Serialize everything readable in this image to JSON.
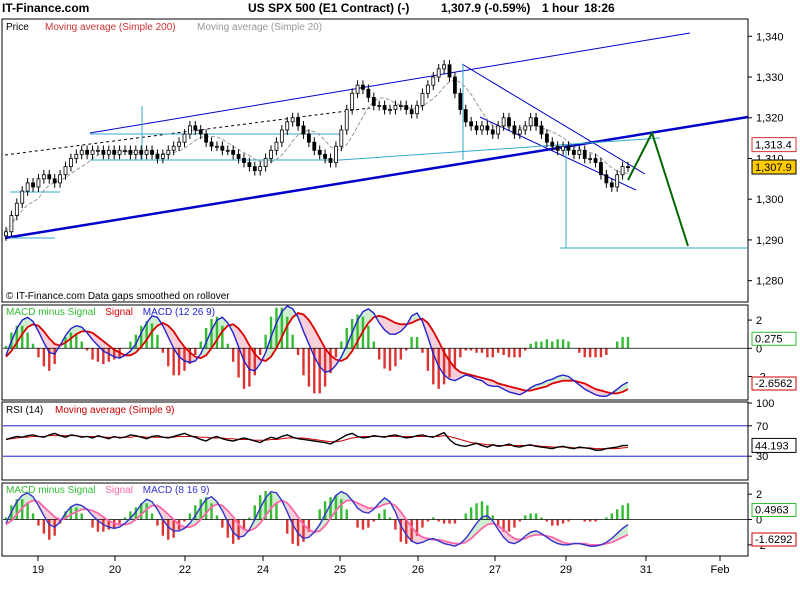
{
  "header": {
    "site": "IT-Finance.com",
    "instrument": "US SPX 500 (E1 Contract) (-)",
    "quote": "1,307.9 (-0.59%)",
    "timeframe": "1 hour",
    "time": "18:26"
  },
  "colors": {
    "price": "#000000",
    "channel": "#0000cc",
    "ma200": "#cc3333",
    "ma20": "#999999",
    "projection": "#006600",
    "support": "#33aacc",
    "macd_line": "#2222cc",
    "signal_line": "#dd0000",
    "hist_pos": "#33bb33",
    "hist_neg": "#dd3333",
    "rsi": "#000000",
    "rsi_ma": "#cc0000",
    "macd2_line": "#3333cc",
    "macd2_signal": "#ff66aa"
  },
  "chart_data": [
    {
      "type": "candlestick",
      "panel_label": "Price",
      "legend": [
        {
          "name": "Moving average (Simple 200)",
          "color": "#cc3333"
        },
        {
          "name": "Moving average (Simple 20)",
          "color": "#999999"
        }
      ],
      "y_ticks": [
        "1,340",
        "1,330",
        "1,320",
        "1,310",
        "1,300",
        "1,290",
        "1,280"
      ],
      "ylim": [
        1275,
        1344
      ],
      "x_ticks": [
        "19",
        "20",
        "22",
        "24",
        "25",
        "26",
        "27",
        "29",
        "31",
        "Feb"
      ],
      "last_value_label": "1,307.9",
      "last_ma_label": "1,313.4",
      "footnote": "© IT-Finance.com  Data gaps smoothed on rollover",
      "close_series": [
        1292,
        1296,
        1299,
        1302,
        1304,
        1303,
        1305,
        1306,
        1305,
        1304,
        1306,
        1308,
        1310,
        1311,
        1312,
        1311,
        1312,
        1312,
        1311,
        1312,
        1311,
        1312,
        1312,
        1311,
        1312,
        1311,
        1312,
        1311,
        1310,
        1311,
        1312,
        1313,
        1314,
        1316,
        1318,
        1317,
        1316,
        1314,
        1313,
        1313,
        1312,
        1312,
        1311,
        1310,
        1309,
        1308,
        1307,
        1308,
        1310,
        1312,
        1314,
        1317,
        1319,
        1320,
        1318,
        1316,
        1314,
        1312,
        1311,
        1310,
        1309,
        1313,
        1317,
        1322,
        1326,
        1328,
        1327,
        1325,
        1323,
        1323,
        1322,
        1322,
        1323,
        1323,
        1322,
        1321,
        1323,
        1326,
        1328,
        1330,
        1332,
        1333,
        1330,
        1326,
        1322,
        1319,
        1318,
        1317,
        1318,
        1317,
        1316,
        1318,
        1320,
        1318,
        1316,
        1317,
        1318,
        1320,
        1318,
        1316,
        1314,
        1313,
        1312,
        1313,
        1312,
        1311,
        1312,
        1310,
        1310,
        1309,
        1306,
        1304,
        1303,
        1306,
        1308,
        1307.9
      ],
      "ma200_series": [
        1292,
        1294,
        1296,
        1298,
        1300,
        1301,
        1302,
        1303,
        1304,
        1305,
        1306,
        1307,
        1308,
        1309,
        1310,
        1310,
        1311,
        1311,
        1311,
        1312,
        1312,
        1312,
        1312,
        1312,
        1312,
        1312,
        1312,
        1312,
        1312,
        1312,
        1312,
        1312,
        1313,
        1313,
        1314,
        1314,
        1314,
        1314,
        1314,
        1314,
        1314,
        1313,
        1313,
        1313,
        1312,
        1312,
        1311,
        1311,
        1311,
        1311,
        1312,
        1312,
        1313,
        1314,
        1314,
        1314,
        1314,
        1314,
        1313,
        1313,
        1312,
        1312,
        1313,
        1314,
        1315,
        1316,
        1317,
        1318,
        1318,
        1319,
        1319,
        1320,
        1320,
        1320,
        1320,
        1320,
        1321,
        1321,
        1322,
        1322,
        1323,
        1324,
        1324,
        1324,
        1324,
        1323,
        1323,
        1322,
        1321,
        1320,
        1320,
        1319,
        1319,
        1319,
        1318,
        1318,
        1318,
        1318,
        1318,
        1317,
        1317,
        1316,
        1316,
        1315,
        1315,
        1314,
        1314,
        1314,
        1313,
        1313,
        1312,
        1312,
        1312,
        1312,
        1313,
        1313.4
      ]
    },
    {
      "type": "macd",
      "legend": [
        {
          "name": "MACD minus Signal",
          "color": "#33bb33"
        },
        {
          "name": "Signal",
          "color": "#dd0000"
        },
        {
          "name": "MACD (12 26 9)",
          "color": "#2222cc"
        }
      ],
      "y_ticks": [
        "2",
        "0",
        "-2"
      ],
      "ylim": [
        -3.6,
        3.0
      ],
      "macd_label": "0.275",
      "signal_label": "-2.6562",
      "macd": [
        -0.5,
        0.5,
        1.4,
        2.0,
        2.2,
        1.9,
        1.2,
        0.4,
        -0.3,
        -0.4,
        0.2,
        0.9,
        1.4,
        1.6,
        1.5,
        1.1,
        0.6,
        0.2,
        -0.2,
        -0.4,
        -0.6,
        -0.7,
        -0.5,
        -0.2,
        0.3,
        1.1,
        1.8,
        2.3,
        2.2,
        1.6,
        0.8,
        0.0,
        -0.6,
        -0.9,
        -1.0,
        -0.9,
        -0.4,
        0.4,
        1.3,
        2.0,
        2.2,
        1.8,
        1.1,
        0.1,
        -0.9,
        -1.5,
        -1.6,
        -1.1,
        -0.3,
        0.8,
        1.8,
        2.6,
        3.0,
        2.8,
        2.2,
        1.2,
        0.3,
        -0.6,
        -1.3,
        -1.7,
        -1.6,
        -1.2,
        -0.6,
        0.2,
        1.1,
        2.0,
        2.6,
        2.8,
        2.5,
        1.8,
        1.3,
        1.0,
        1.0,
        1.2,
        1.6,
        2.3,
        2.5,
        1.9,
        0.8,
        -0.4,
        -1.3,
        -1.9,
        -2.2,
        -2.3,
        -2.1,
        -1.9,
        -2.0,
        -2.2,
        -2.3,
        -2.6,
        -2.7,
        -2.7,
        -2.9,
        -3.1,
        -3.2,
        -3.3,
        -3.1,
        -2.8,
        -2.6,
        -2.5,
        -2.3,
        -2.2,
        -2.0,
        -1.9,
        -2.0,
        -2.3,
        -2.6,
        -2.9,
        -3.1,
        -3.3,
        -3.4,
        -3.4,
        -3.2,
        -2.9,
        -2.6,
        -2.4
      ],
      "signal": [
        -0.6,
        -0.2,
        0.4,
        1.0,
        1.5,
        1.7,
        1.6,
        1.2,
        0.7,
        0.3,
        0.2,
        0.4,
        0.7,
        1.0,
        1.2,
        1.2,
        1.1,
        0.8,
        0.5,
        0.2,
        -0.1,
        -0.3,
        -0.5,
        -0.5,
        -0.3,
        0.1,
        0.6,
        1.2,
        1.6,
        1.8,
        1.6,
        1.2,
        0.6,
        0.1,
        -0.3,
        -0.6,
        -0.7,
        -0.5,
        0.0,
        0.6,
        1.2,
        1.6,
        1.7,
        1.4,
        0.9,
        0.2,
        -0.4,
        -0.8,
        -0.9,
        -0.6,
        0.0,
        0.8,
        1.6,
        2.2,
        2.5,
        2.4,
        2.0,
        1.4,
        0.7,
        0.0,
        -0.5,
        -0.8,
        -0.9,
        -0.7,
        -0.2,
        0.5,
        1.2,
        1.8,
        2.2,
        2.3,
        2.2,
        2.0,
        1.8,
        1.7,
        1.7,
        1.8,
        2.0,
        2.1,
        1.8,
        1.2,
        0.5,
        -0.3,
        -0.9,
        -1.4,
        -1.7,
        -1.8,
        -1.9,
        -2.0,
        -2.1,
        -2.2,
        -2.3,
        -2.5,
        -2.6,
        -2.7,
        -2.8,
        -2.9,
        -3.0,
        -3.0,
        -2.9,
        -2.8,
        -2.7,
        -2.5,
        -2.4,
        -2.3,
        -2.3,
        -2.3,
        -2.4,
        -2.5,
        -2.7,
        -2.9,
        -3.0,
        -3.1,
        -3.2,
        -3.2,
        -3.1,
        -2.9
      ]
    },
    {
      "type": "line",
      "legend": [
        {
          "name": "RSI (14)",
          "color": "#000000"
        },
        {
          "name": "Moving average (Simple 9)",
          "color": "#cc0000"
        }
      ],
      "y_ticks": [
        "100",
        "70",
        "30"
      ],
      "ylim": [
        0,
        100
      ],
      "rsi_label": "44.193",
      "rsi": [
        52,
        54,
        56,
        55,
        57,
        58,
        56,
        55,
        58,
        60,
        57,
        55,
        58,
        57,
        55,
        56,
        54,
        57,
        55,
        53,
        56,
        54,
        55,
        58,
        57,
        55,
        53,
        56,
        57,
        55,
        54,
        56,
        58,
        60,
        57,
        55,
        52,
        50,
        54,
        56,
        53,
        51,
        50,
        52,
        54,
        52,
        50,
        48,
        52,
        55,
        53,
        56,
        58,
        55,
        53,
        52,
        51,
        50,
        49,
        48,
        46,
        50,
        54,
        58,
        60,
        56,
        54,
        55,
        57,
        56,
        55,
        57,
        58,
        56,
        54,
        55,
        57,
        58,
        56,
        55,
        58,
        61,
        52,
        46,
        44,
        43,
        45,
        47,
        44,
        42,
        45,
        43,
        44,
        46,
        43,
        42,
        44,
        45,
        43,
        42,
        41,
        40,
        42,
        43,
        41,
        40,
        42,
        41,
        40,
        38,
        38,
        40,
        41,
        42,
        44,
        44.2
      ],
      "rsi_ma": [
        52,
        53,
        54,
        55,
        55,
        56,
        56,
        56,
        57,
        57,
        57,
        57,
        57,
        57,
        56,
        56,
        56,
        56,
        55,
        55,
        55,
        55,
        55,
        55,
        56,
        56,
        55,
        55,
        55,
        55,
        55,
        55,
        56,
        56,
        56,
        56,
        55,
        55,
        54,
        54,
        54,
        53,
        53,
        52,
        52,
        52,
        51,
        51,
        51,
        52,
        52,
        53,
        54,
        54,
        54,
        54,
        53,
        52,
        51,
        50,
        49,
        49,
        50,
        52,
        54,
        55,
        56,
        56,
        56,
        56,
        56,
        56,
        56,
        56,
        56,
        56,
        56,
        56,
        56,
        56,
        56,
        57,
        56,
        54,
        52,
        50,
        48,
        47,
        46,
        45,
        45,
        44,
        44,
        44,
        44,
        44,
        44,
        44,
        44,
        43,
        43,
        42,
        42,
        42,
        42,
        41,
        41,
        41,
        41,
        40,
        40,
        40,
        40,
        40,
        41,
        41.5
      ]
    },
    {
      "type": "macd",
      "legend": [
        {
          "name": "MACD minus Signal",
          "color": "#33bb33"
        },
        {
          "name": "Signal",
          "color": "#ff66aa"
        },
        {
          "name": "MACD (8 16 9)",
          "color": "#3333cc"
        }
      ],
      "y_ticks": [
        "2",
        "0",
        "-2"
      ],
      "ylim": [
        -2.8,
        2.8
      ],
      "macd_label": "0.4963",
      "signal_label": "-1.6292",
      "macd": [
        -0.3,
        0.6,
        1.4,
        1.9,
        2.1,
        1.8,
        1.1,
        0.3,
        -0.4,
        -0.6,
        -0.2,
        0.5,
        1.0,
        1.2,
        1.1,
        0.8,
        0.3,
        -0.1,
        -0.4,
        -0.6,
        -0.7,
        -0.6,
        -0.3,
        0.1,
        0.6,
        1.2,
        1.6,
        1.4,
        0.8,
        0.0,
        -0.6,
        -0.9,
        -0.9,
        -0.7,
        -0.3,
        0.3,
        1.0,
        1.6,
        1.8,
        1.4,
        0.7,
        -0.2,
        -1.0,
        -1.4,
        -1.3,
        -0.8,
        0.0,
        0.9,
        1.7,
        2.2,
        2.1,
        1.5,
        0.6,
        -0.4,
        -1.1,
        -1.5,
        -1.4,
        -1.0,
        -0.4,
        0.4,
        1.2,
        1.9,
        2.2,
        2.0,
        1.5,
        0.9,
        0.6,
        0.5,
        0.8,
        1.3,
        1.7,
        1.4,
        0.6,
        -0.5,
        -1.2,
        -1.7,
        -1.9,
        -1.8,
        -1.6,
        -1.5,
        -1.7,
        -1.9,
        -2.0,
        -2.1,
        -1.9,
        -1.5,
        -0.9,
        -0.3,
        0.2,
        0.3,
        -0.1,
        -0.8,
        -1.4,
        -1.8,
        -1.9,
        -1.7,
        -1.3,
        -1.0,
        -0.9,
        -1.1,
        -1.4,
        -1.7,
        -1.9,
        -2.0,
        -2.0,
        -1.9,
        -1.9,
        -2.0,
        -2.1,
        -2.1,
        -2.0,
        -1.8,
        -1.5,
        -1.1,
        -0.7,
        -0.4
      ],
      "signal": [
        -0.4,
        -0.1,
        0.4,
        0.9,
        1.3,
        1.5,
        1.4,
        1.0,
        0.6,
        0.2,
        0.0,
        0.1,
        0.4,
        0.6,
        0.8,
        0.8,
        0.7,
        0.5,
        0.2,
        -0.1,
        -0.3,
        -0.4,
        -0.4,
        -0.3,
        0.0,
        0.4,
        0.8,
        1.1,
        1.1,
        0.8,
        0.4,
        0.0,
        -0.4,
        -0.6,
        -0.6,
        -0.4,
        0.0,
        0.5,
        1.0,
        1.2,
        1.1,
        0.7,
        0.2,
        -0.4,
        -0.8,
        -0.9,
        -0.7,
        -0.3,
        0.3,
        0.9,
        1.3,
        1.5,
        1.3,
        0.8,
        0.2,
        -0.4,
        -0.8,
        -1.0,
        -0.9,
        -0.5,
        0.1,
        0.7,
        1.2,
        1.5,
        1.5,
        1.3,
        1.1,
        0.9,
        0.9,
        1.0,
        1.2,
        1.3,
        1.1,
        0.6,
        0.0,
        -0.6,
        -1.1,
        -1.4,
        -1.5,
        -1.6,
        -1.6,
        -1.7,
        -1.8,
        -1.9,
        -1.9,
        -1.8,
        -1.5,
        -1.1,
        -0.7,
        -0.4,
        -0.3,
        -0.5,
        -0.8,
        -1.2,
        -1.5,
        -1.6,
        -1.5,
        -1.3,
        -1.2,
        -1.2,
        -1.3,
        -1.4,
        -1.6,
        -1.8,
        -1.9,
        -1.9,
        -1.9,
        -1.9,
        -2.0,
        -2.0,
        -2.0,
        -1.9,
        -1.8,
        -1.6,
        -1.4,
        -1.2
      ]
    }
  ]
}
